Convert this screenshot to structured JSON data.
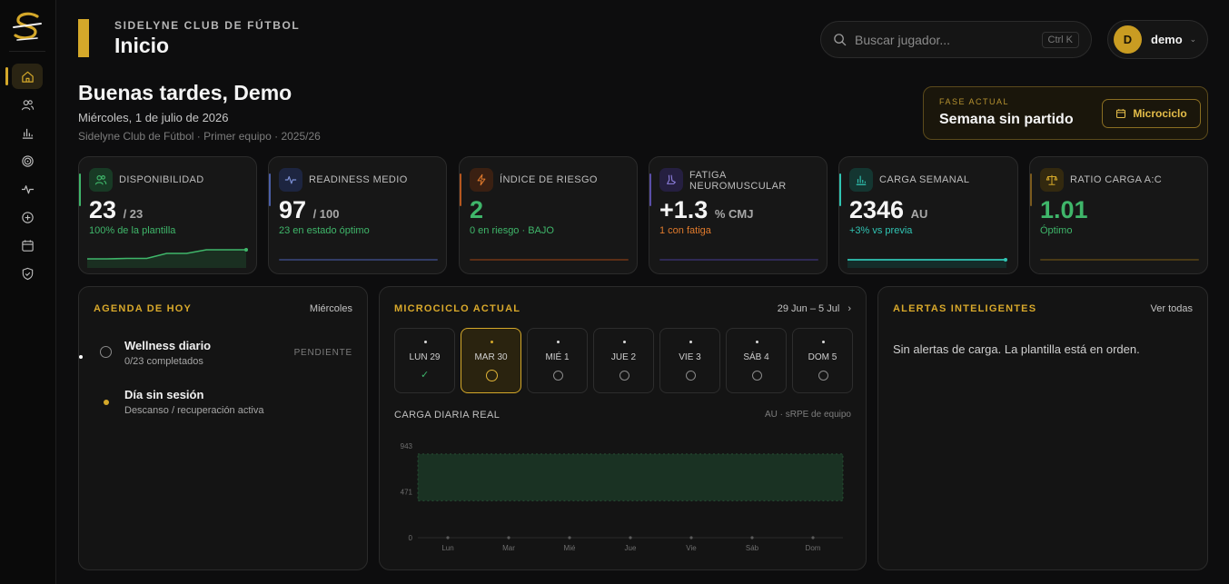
{
  "header": {
    "club": "SIDELYNE CLUB DE FÚTBOL",
    "title": "Inicio",
    "search_placeholder": "Buscar jugador...",
    "search_shortcut": "Ctrl K",
    "user_initial": "D",
    "user_name": "demo"
  },
  "sidebar": {
    "items": [
      {
        "icon": "home-icon",
        "active": true
      },
      {
        "icon": "users-icon"
      },
      {
        "icon": "chart-bars-icon"
      },
      {
        "icon": "target-icon"
      },
      {
        "icon": "pulse-icon"
      },
      {
        "icon": "plus-square-icon"
      },
      {
        "icon": "calendar-icon"
      },
      {
        "icon": "shield-icon"
      }
    ]
  },
  "greeting": {
    "title": "Buenas tardes, Demo",
    "date": "Miércoles, 1 de julio de 2026",
    "subtitle": "Sidelyne Club de Fútbol · Primer equipo · 2025/26"
  },
  "phase": {
    "label": "FASE ACTUAL",
    "value": "Semana sin partido",
    "button": "Microciclo"
  },
  "kpis": [
    {
      "label": "DISPONIBILIDAD",
      "value": "23",
      "unit": "/ 23",
      "sub": "100% de la plantilla",
      "sub_color": "#3fb66a",
      "accent": "#3fb66a",
      "trend": [
        10,
        10,
        10.5,
        10.5,
        16,
        16,
        20,
        20,
        20
      ]
    },
    {
      "label": "READINESS MEDIO",
      "value": "97",
      "unit": "/ 100",
      "sub": "23 en estado óptimo",
      "sub_color": "#3fb66a",
      "accent": "#4b5fa8"
    },
    {
      "label": "ÍNDICE DE RIESGO",
      "value": "2",
      "unit": "",
      "sub": "0 en riesgo · BAJO",
      "sub_color": "#3fb66a",
      "accent": "#b5571f",
      "value_color": "#3fb66a"
    },
    {
      "label": "FATIGA NEUROMUSCULAR",
      "value": "+1.3",
      "unit": "% CMJ",
      "sub": "1 con fatiga",
      "sub_color": "#e07a2c",
      "accent": "#5a4ea8"
    },
    {
      "label": "CARGA SEMANAL",
      "value": "2346",
      "unit": "AU",
      "sub": "+3% vs previa",
      "sub_color": "#30c4b3",
      "accent": "#30c4b3"
    },
    {
      "label": "RATIO CARGA A:C",
      "value": "1.01",
      "unit": "",
      "sub": "Óptimo",
      "sub_color": "#3fb66a",
      "accent": "#7a5a1e",
      "value_color": "#3fb66a"
    }
  ],
  "agenda": {
    "title": "AGENDA DE HOY",
    "day": "Miércoles",
    "items": [
      {
        "title": "Wellness diario",
        "sub": "0/23 completados",
        "status": "PENDIENTE"
      },
      {
        "title": "Día sin sesión",
        "sub": "Descanso / recuperación activa"
      }
    ]
  },
  "microcycle": {
    "title": "MICROCICLO ACTUAL",
    "range": "29 Jun – 5 Jul",
    "days": [
      {
        "label": "LUN 29",
        "state": "done"
      },
      {
        "label": "MAR 30",
        "state": "active"
      },
      {
        "label": "MIÉ 1",
        "state": "pending"
      },
      {
        "label": "JUE 2",
        "state": "pending"
      },
      {
        "label": "VIE 3",
        "state": "pending"
      },
      {
        "label": "SÁB 4",
        "state": "pending"
      },
      {
        "label": "DOM 5",
        "state": "pending"
      }
    ],
    "chart_title": "CARGA DIARIA REAL",
    "chart_note": "AU · sRPE de equipo"
  },
  "chart_data": {
    "type": "area",
    "categories": [
      "Lun",
      "Mar",
      "Mié",
      "Jue",
      "Vie",
      "Sáb",
      "Dom"
    ],
    "values": [
      0,
      0,
      0,
      0,
      0,
      0,
      0
    ],
    "yticks": [
      0,
      471,
      943
    ],
    "ylim": [
      0,
      943
    ],
    "band": [
      380,
      860
    ],
    "colors": {
      "band": "#1a3223",
      "band_stroke": "#2b5a3a",
      "point": "#5a5a5a"
    }
  },
  "alerts": {
    "title": "ALERTAS INTELIGENTES",
    "link": "Ver todas",
    "empty": "Sin alertas de carga. La plantilla está en orden."
  }
}
